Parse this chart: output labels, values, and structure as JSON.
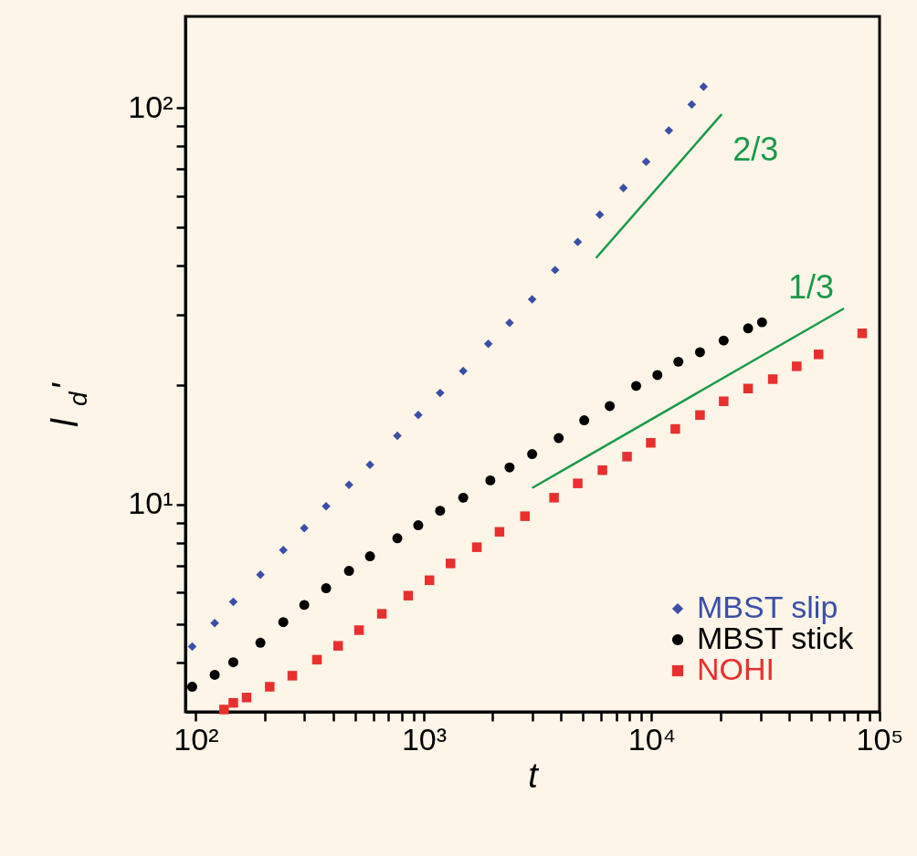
{
  "chart_data": {
    "type": "scatter",
    "xlabel": "t",
    "ylabel": "l$_{d}$'",
    "log": "xy",
    "xlim": [
      90,
      100000
    ],
    "ylim": [
      3,
      170
    ],
    "xticks": [
      {
        "value": 100,
        "label": "10²"
      },
      {
        "value": 200,
        "label": null
      },
      {
        "value": 300,
        "label": null
      },
      {
        "value": 400,
        "label": null
      },
      {
        "value": 500,
        "label": null
      },
      {
        "value": 600,
        "label": null
      },
      {
        "value": 700,
        "label": null
      },
      {
        "value": 800,
        "label": null
      },
      {
        "value": 900,
        "label": null
      },
      {
        "value": 1000,
        "label": "10³"
      },
      {
        "value": 2000,
        "label": null
      },
      {
        "value": 3000,
        "label": null
      },
      {
        "value": 4000,
        "label": null
      },
      {
        "value": 5000,
        "label": null
      },
      {
        "value": 6000,
        "label": null
      },
      {
        "value": 7000,
        "label": null
      },
      {
        "value": 8000,
        "label": null
      },
      {
        "value": 9000,
        "label": null
      },
      {
        "value": 10000,
        "label": "10⁴"
      },
      {
        "value": 20000,
        "label": null
      },
      {
        "value": 30000,
        "label": null
      },
      {
        "value": 40000,
        "label": null
      },
      {
        "value": 50000,
        "label": null
      },
      {
        "value": 60000,
        "label": null
      },
      {
        "value": 70000,
        "label": null
      },
      {
        "value": 80000,
        "label": null
      },
      {
        "value": 90000,
        "label": null
      },
      {
        "value": 100000,
        "label": "10⁵"
      }
    ],
    "yticks": [
      {
        "value": 4,
        "label": null
      },
      {
        "value": 5,
        "label": null
      },
      {
        "value": 6,
        "label": null
      },
      {
        "value": 7,
        "label": null
      },
      {
        "value": 8,
        "label": null
      },
      {
        "value": 9,
        "label": null
      },
      {
        "value": 10,
        "label": "10¹"
      },
      {
        "value": 20,
        "label": null
      },
      {
        "value": 30,
        "label": null
      },
      {
        "value": 40,
        "label": null
      },
      {
        "value": 50,
        "label": null
      },
      {
        "value": 60,
        "label": null
      },
      {
        "value": 70,
        "label": null
      },
      {
        "value": 80,
        "label": null
      },
      {
        "value": 90,
        "label": null
      },
      {
        "value": 100,
        "label": "10²"
      }
    ],
    "grid": false,
    "legend": "bottom right",
    "series": [
      {
        "name": "MBST slip",
        "color": "#3b4fa8",
        "marker": "diamond",
        "x": [
          96.4,
          121,
          146,
          192,
          242,
          299,
          373,
          470,
          581,
          766,
          946,
          1180,
          1490,
          1920,
          2380,
          2990,
          3770,
          4740,
          5920,
          7520,
          9460,
          11900,
          15000,
          16900
        ],
        "values": [
          4.38,
          5.02,
          5.68,
          6.65,
          7.67,
          8.71,
          9.89,
          11.2,
          12.6,
          14.9,
          16.8,
          19.1,
          21.7,
          25.4,
          28.7,
          32.9,
          39.0,
          45.9,
          53.8,
          62.8,
          73.1,
          87.7,
          102,
          113
        ]
      },
      {
        "name": "MBST stick",
        "color": "#000000",
        "marker": "circle",
        "x": [
          96.4,
          121,
          146,
          192,
          242,
          299,
          373,
          470,
          581,
          766,
          946,
          1180,
          1490,
          1960,
          2380,
          2990,
          3910,
          5060,
          6550,
          8550,
          10600,
          13100,
          16300,
          20700,
          26500,
          30500
        ],
        "values": [
          3.47,
          3.72,
          4.0,
          4.48,
          5.05,
          5.58,
          6.15,
          6.8,
          7.4,
          8.22,
          8.86,
          9.64,
          10.4,
          11.5,
          12.4,
          13.4,
          14.7,
          16.3,
          17.7,
          19.9,
          21.2,
          22.9,
          24.2,
          25.9,
          27.8,
          28.8
        ]
      },
      {
        "name": "NOHI",
        "color": "#e8302e",
        "marker": "square",
        "x": [
          133,
          146,
          167,
          211,
          265,
          340,
          421,
          520,
          655,
          855,
          1060,
          1310,
          1710,
          2150,
          2780,
          3730,
          4740,
          6080,
          7800,
          9910,
          12700,
          16300,
          20700,
          26500,
          34000,
          43300,
          54000,
          83900
        ],
        "values": [
          3.04,
          3.16,
          3.26,
          3.47,
          3.7,
          4.06,
          4.4,
          4.82,
          5.3,
          5.89,
          6.44,
          7.1,
          7.8,
          8.53,
          9.34,
          10.4,
          11.3,
          12.2,
          13.2,
          14.3,
          15.5,
          16.8,
          18.2,
          19.6,
          20.7,
          22.3,
          23.9,
          27.0
        ]
      },
      {
        "type": "line",
        "name": "2/3",
        "color": "#1a9a4a",
        "line_style": "solid",
        "x": [
          5700,
          20300
        ],
        "values": [
          41.8,
          96.4
        ]
      },
      {
        "type": "line",
        "name": "1/3",
        "color": "#1a9a4a",
        "line_style": "solid",
        "x": [
          2990,
          69800
        ],
        "values": [
          11.0,
          31.2
        ]
      }
    ]
  }
}
